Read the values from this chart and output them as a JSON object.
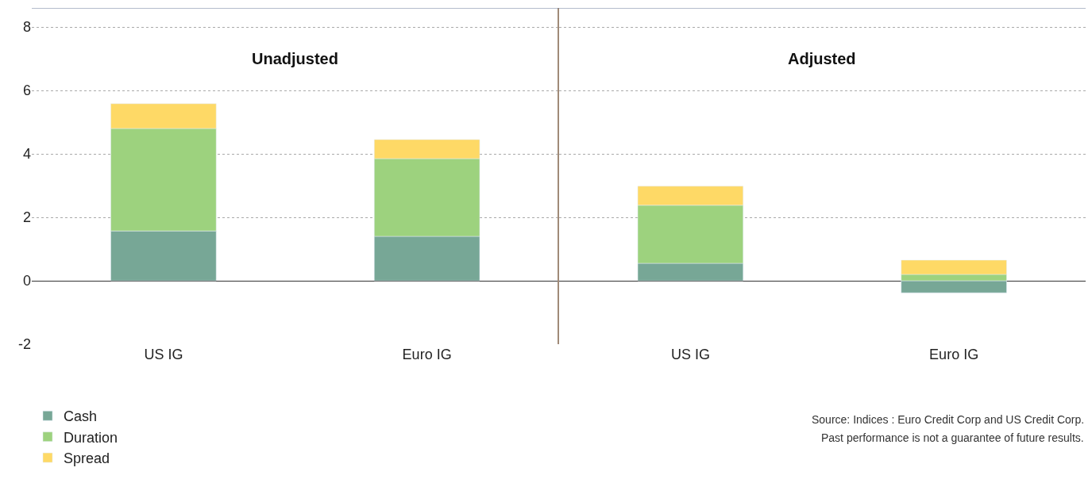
{
  "chart_data": [
    {
      "type": "bar",
      "stacked": true,
      "title": "Unadjusted",
      "categories": [
        "US IG",
        "Euro IG"
      ],
      "series": [
        {
          "name": "Cash",
          "color": "#77a796",
          "values": [
            1.57,
            1.4
          ]
        },
        {
          "name": "Duration",
          "color": "#9dd27e",
          "values": [
            3.23,
            2.45
          ]
        },
        {
          "name": "Spread",
          "color": "#fed966",
          "values": [
            0.78,
            0.6
          ]
        }
      ],
      "ylim": [
        -2,
        8.6
      ],
      "yticks": [
        -2,
        0,
        2,
        4,
        6,
        8
      ],
      "grid": "y",
      "legend": "bottom left"
    },
    {
      "type": "bar",
      "stacked": true,
      "title": "Adjusted",
      "categories": [
        "US IG",
        "Euro IG"
      ],
      "series": [
        {
          "color": "#77a796",
          "values": [
            0.55,
            -0.38
          ]
        },
        {
          "color": "#9dd27e",
          "values": [
            1.83,
            0.2
          ]
        },
        {
          "color": "#fed966",
          "values": [
            0.6,
            0.45
          ]
        }
      ],
      "ylim": [
        -2,
        8.6
      ],
      "yticks": [
        -2,
        0,
        2,
        4,
        6,
        8
      ],
      "grid": "y",
      "tick_labels": "x",
      "annotations": [
        "Source: Indices : Euro Credit Corp and US Credit Corp.",
        "Past performance is not a guarantee of future results."
      ]
    }
  ]
}
